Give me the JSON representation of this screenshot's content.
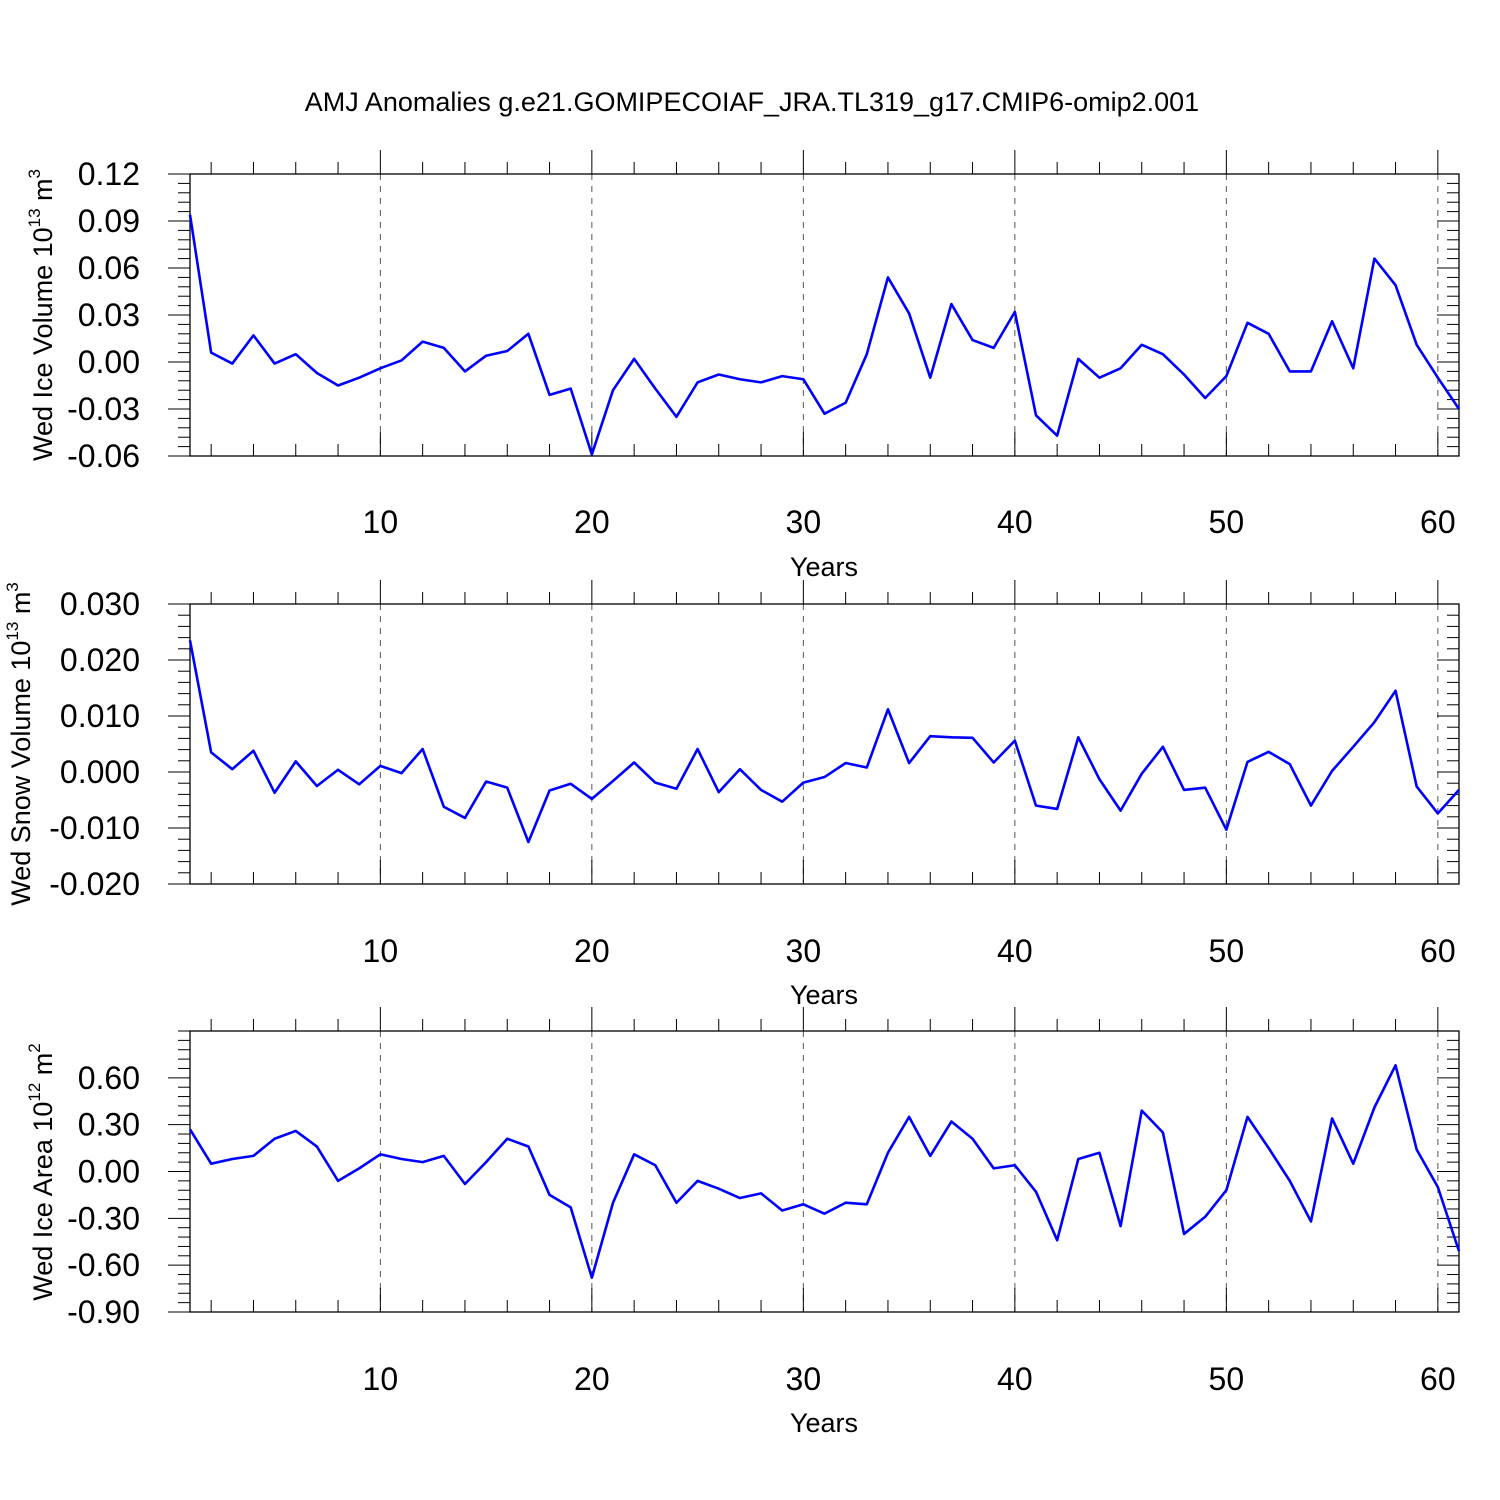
{
  "title": "AMJ Anomalies g.e21.GOMIPECOIAF_JRA.TL319_g17.CMIP6-omip2.001",
  "line_color": "#0000ff",
  "chart_data": [
    {
      "type": "line",
      "ylabel": "Wed Ice Volume 10",
      "ylabel_exp": "13",
      "ylabel_unit": " m",
      "ylabel_unit_exp": "3",
      "xlabel": "Years",
      "xlim": [
        1,
        61
      ],
      "ylim": [
        -0.06,
        0.12
      ],
      "xticks": [
        10,
        20,
        30,
        40,
        50,
        60
      ],
      "yticks": [
        -0.06,
        -0.03,
        0.0,
        0.03,
        0.06,
        0.09,
        0.12
      ],
      "ytick_labels": [
        "-0.06",
        "-0.03",
        "0.00",
        "0.03",
        "0.06",
        "0.09",
        "0.12"
      ],
      "grid": "vertical dashed at x ticks",
      "series": [
        {
          "x": [
            1,
            2,
            3,
            4,
            5,
            6,
            7,
            8,
            9,
            10,
            11,
            12,
            13,
            14,
            15,
            16,
            17,
            18,
            19,
            20,
            21,
            22,
            23,
            24,
            25,
            26,
            27,
            28,
            29,
            30,
            31,
            32,
            33,
            34,
            35,
            36,
            37,
            38,
            39,
            40,
            41,
            42,
            43,
            44,
            45,
            46,
            47,
            48,
            49,
            50,
            51,
            52,
            53,
            54,
            55,
            56,
            57,
            58,
            59,
            60,
            61
          ],
          "y": [
            0.094,
            0.006,
            -0.001,
            0.017,
            -0.001,
            0.005,
            -0.007,
            -0.015,
            -0.01,
            -0.004,
            0.001,
            0.013,
            0.009,
            -0.006,
            0.004,
            0.007,
            0.018,
            -0.021,
            -0.017,
            -0.059,
            -0.018,
            0.002,
            -0.017,
            -0.035,
            -0.013,
            -0.008,
            -0.011,
            -0.013,
            -0.009,
            -0.011,
            -0.033,
            -0.026,
            0.005,
            0.054,
            0.031,
            -0.01,
            0.037,
            0.014,
            0.009,
            0.032,
            -0.034,
            -0.047,
            0.002,
            -0.01,
            -0.004,
            0.011,
            0.005,
            -0.008,
            -0.023,
            -0.009,
            0.025,
            0.018,
            -0.006,
            -0.006,
            0.026,
            -0.004,
            0.066,
            0.049,
            0.011,
            -0.01,
            -0.03
          ]
        }
      ]
    },
    {
      "type": "line",
      "ylabel": "Wed Snow Volume 10",
      "ylabel_exp": "13",
      "ylabel_unit": " m",
      "ylabel_unit_exp": "3",
      "xlabel": "Years",
      "xlim": [
        1,
        61
      ],
      "ylim": [
        -0.02,
        0.03
      ],
      "xticks": [
        10,
        20,
        30,
        40,
        50,
        60
      ],
      "yticks": [
        -0.02,
        -0.01,
        0.0,
        0.01,
        0.02,
        0.03
      ],
      "ytick_labels": [
        "-0.020",
        "-0.010",
        "0.000",
        "0.010",
        "0.020",
        "0.030"
      ],
      "grid": "vertical dashed at x ticks",
      "series": [
        {
          "x": [
            1,
            2,
            3,
            4,
            5,
            6,
            7,
            8,
            9,
            10,
            11,
            12,
            13,
            14,
            15,
            16,
            17,
            18,
            19,
            20,
            21,
            22,
            23,
            24,
            25,
            26,
            27,
            28,
            29,
            30,
            31,
            32,
            33,
            34,
            35,
            36,
            37,
            38,
            39,
            40,
            41,
            42,
            43,
            44,
            45,
            46,
            47,
            48,
            49,
            50,
            51,
            52,
            53,
            54,
            55,
            56,
            57,
            58,
            59,
            60,
            61
          ],
          "y": [
            0.0235,
            0.0035,
            0.0005,
            0.0038,
            -0.0037,
            0.0019,
            -0.0025,
            0.0004,
            -0.0022,
            0.0011,
            -0.0002,
            0.0041,
            -0.0062,
            -0.0082,
            -0.0017,
            -0.0028,
            -0.0125,
            -0.0033,
            -0.0021,
            -0.0048,
            -0.0016,
            0.0017,
            -0.0019,
            -0.003,
            0.0041,
            -0.0036,
            0.0005,
            -0.0032,
            -0.0053,
            -0.0019,
            -0.0009,
            0.0016,
            0.0008,
            0.0112,
            0.0016,
            0.0064,
            0.0062,
            0.0061,
            0.0017,
            0.0056,
            -0.006,
            -0.0066,
            0.0062,
            -0.0013,
            -0.0069,
            -0.0003,
            0.0045,
            -0.0032,
            -0.0028,
            -0.0103,
            0.0018,
            0.0036,
            0.0014,
            -0.006,
            0.0002,
            0.0045,
            0.0089,
            0.0145,
            -0.0026,
            -0.0074,
            -0.0032
          ]
        }
      ]
    },
    {
      "type": "line",
      "ylabel": "Wed Ice Area 10",
      "ylabel_exp": "12",
      "ylabel_unit": " m",
      "ylabel_unit_exp": "2",
      "xlabel": "Years",
      "xlim": [
        1,
        61
      ],
      "ylim": [
        -0.9,
        0.9
      ],
      "xticks": [
        10,
        20,
        30,
        40,
        50,
        60
      ],
      "yticks": [
        -0.9,
        -0.6,
        -0.3,
        0.0,
        0.3,
        0.6
      ],
      "ytick_labels": [
        "-0.90",
        "-0.60",
        "-0.30",
        "0.00",
        "0.30",
        "0.60"
      ],
      "grid": "vertical dashed at x ticks",
      "series": [
        {
          "x": [
            1,
            2,
            3,
            4,
            5,
            6,
            7,
            8,
            9,
            10,
            11,
            12,
            13,
            14,
            15,
            16,
            17,
            18,
            19,
            20,
            21,
            22,
            23,
            24,
            25,
            26,
            27,
            28,
            29,
            30,
            31,
            32,
            33,
            34,
            35,
            36,
            37,
            38,
            39,
            40,
            41,
            42,
            43,
            44,
            45,
            46,
            47,
            48,
            49,
            50,
            51,
            52,
            53,
            54,
            55,
            56,
            57,
            58,
            59,
            60,
            61
          ],
          "y": [
            0.27,
            0.05,
            0.08,
            0.1,
            0.21,
            0.26,
            0.16,
            -0.06,
            0.02,
            0.11,
            0.08,
            0.06,
            0.1,
            -0.08,
            0.06,
            0.21,
            0.16,
            -0.15,
            -0.23,
            -0.68,
            -0.2,
            0.11,
            0.04,
            -0.2,
            -0.06,
            -0.11,
            -0.17,
            -0.14,
            -0.25,
            -0.21,
            -0.27,
            -0.2,
            -0.21,
            0.12,
            0.35,
            0.1,
            0.32,
            0.21,
            0.02,
            0.04,
            -0.13,
            -0.44,
            0.08,
            0.12,
            -0.35,
            0.39,
            0.25,
            -0.4,
            -0.29,
            -0.12,
            0.35,
            0.15,
            -0.06,
            -0.32,
            0.34,
            0.05,
            0.41,
            0.68,
            0.14,
            -0.1,
            -0.51
          ]
        }
      ]
    }
  ]
}
